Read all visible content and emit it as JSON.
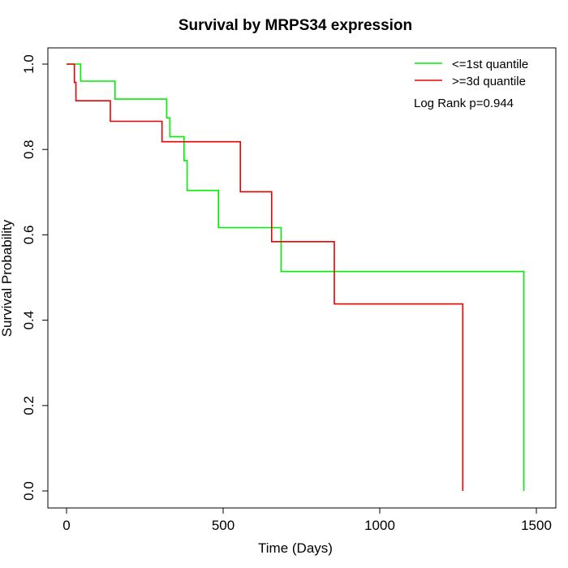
{
  "chart_data": {
    "type": "line",
    "step": true,
    "title": "Survival by MRPS34 expression",
    "xlabel": "Time (Days)",
    "ylabel": "Survival Probability",
    "xlim": [
      0,
      1500
    ],
    "ylim": [
      0,
      1
    ],
    "x_ticks": [
      0,
      500,
      1000,
      1500
    ],
    "y_ticks": [
      0.0,
      0.2,
      0.4,
      0.6,
      0.8,
      1.0
    ],
    "x_tick_labels": [
      "0",
      "500",
      "1000",
      "1500"
    ],
    "y_tick_labels": [
      "0.0",
      "0.2",
      "0.4",
      "0.6",
      "0.8",
      "1.0"
    ],
    "legend_position": "top-right",
    "annotation": "Log Rank p=0.944",
    "series": [
      {
        "name": "<=1st quantile",
        "color": "#00ee00",
        "points": [
          [
            0,
            1.0
          ],
          [
            45,
            1.0
          ],
          [
            45,
            0.96
          ],
          [
            155,
            0.96
          ],
          [
            155,
            0.918
          ],
          [
            320,
            0.918
          ],
          [
            320,
            0.874
          ],
          [
            330,
            0.874
          ],
          [
            330,
            0.83
          ],
          [
            375,
            0.83
          ],
          [
            375,
            0.774
          ],
          [
            385,
            0.774
          ],
          [
            385,
            0.704
          ],
          [
            485,
            0.704
          ],
          [
            485,
            0.617
          ],
          [
            685,
            0.617
          ],
          [
            685,
            0.514
          ],
          [
            1460,
            0.514
          ],
          [
            1460,
            0.0
          ]
        ]
      },
      {
        "name": ">=3d quantile",
        "color": "#ee0000",
        "points": [
          [
            0,
            1.0
          ],
          [
            25,
            1.0
          ],
          [
            25,
            0.957
          ],
          [
            30,
            0.957
          ],
          [
            30,
            0.914
          ],
          [
            140,
            0.914
          ],
          [
            140,
            0.866
          ],
          [
            305,
            0.866
          ],
          [
            305,
            0.818
          ],
          [
            555,
            0.818
          ],
          [
            555,
            0.701
          ],
          [
            655,
            0.701
          ],
          [
            655,
            0.584
          ],
          [
            855,
            0.584
          ],
          [
            855,
            0.438
          ],
          [
            1265,
            0.438
          ],
          [
            1265,
            0.0
          ]
        ]
      }
    ]
  }
}
